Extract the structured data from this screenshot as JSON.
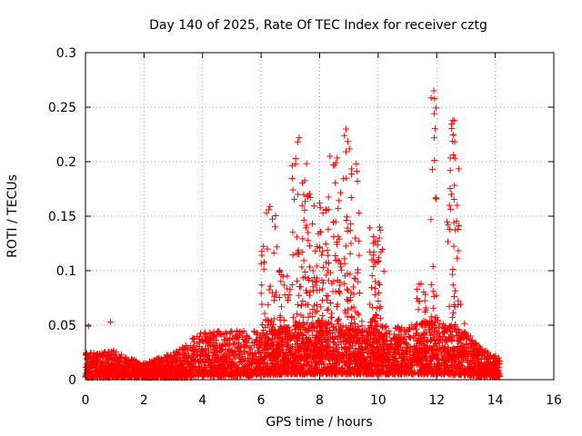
{
  "chart_data": {
    "type": "scatter",
    "title": "Day 140 of 2025, Rate Of TEC Index for receiver cztg",
    "xlabel": "GPS time / hours",
    "ylabel": "ROTI / TECUs",
    "xlim": [
      0,
      16
    ],
    "ylim": [
      0,
      0.3
    ],
    "xticks": [
      0,
      2,
      4,
      6,
      8,
      10,
      12,
      14,
      16
    ],
    "yticks": [
      0,
      0.05,
      0.1,
      0.15,
      0.2,
      0.25,
      0.3
    ],
    "xtick_labels": [
      "0",
      "2",
      "4",
      "6",
      "8",
      "10",
      "12",
      "14",
      "16"
    ],
    "ytick_labels": [
      "0",
      "0.05",
      "0.1",
      "0.15",
      "0.2",
      "0.25",
      "0.3"
    ],
    "grid": true,
    "marker": "+",
    "color": "#ff0000",
    "notable_points": [
      {
        "x": 0.1,
        "y": 0.049
      },
      {
        "x": 0.85,
        "y": 0.053
      },
      {
        "x": 6.3,
        "y": 0.159
      },
      {
        "x": 7.3,
        "y": 0.222
      },
      {
        "x": 7.6,
        "y": 0.135
      },
      {
        "x": 8.0,
        "y": 0.162
      },
      {
        "x": 8.35,
        "y": 0.205
      },
      {
        "x": 8.55,
        "y": 0.199
      },
      {
        "x": 8.9,
        "y": 0.23
      },
      {
        "x": 9.25,
        "y": 0.198
      },
      {
        "x": 9.85,
        "y": 0.117
      },
      {
        "x": 10.05,
        "y": 0.14
      },
      {
        "x": 11.9,
        "y": 0.265
      },
      {
        "x": 11.85,
        "y": 0.193
      },
      {
        "x": 12.55,
        "y": 0.238
      },
      {
        "x": 12.7,
        "y": 0.16
      },
      {
        "x": 12.5,
        "y": 0.17
      }
    ],
    "bursts": [
      {
        "x_start": 6.0,
        "x_end": 6.55,
        "y_max": 0.16,
        "n": 70
      },
      {
        "x_start": 6.6,
        "x_end": 7.0,
        "y_max": 0.105,
        "n": 50
      },
      {
        "x_start": 7.05,
        "x_end": 7.7,
        "y_max": 0.22,
        "n": 130
      },
      {
        "x_start": 7.75,
        "x_end": 8.15,
        "y_max": 0.165,
        "n": 90
      },
      {
        "x_start": 8.2,
        "x_end": 8.75,
        "y_max": 0.205,
        "n": 100
      },
      {
        "x_start": 8.8,
        "x_end": 9.1,
        "y_max": 0.23,
        "n": 60
      },
      {
        "x_start": 9.15,
        "x_end": 9.45,
        "y_max": 0.2,
        "n": 40
      },
      {
        "x_start": 9.7,
        "x_end": 10.2,
        "y_max": 0.14,
        "n": 90
      },
      {
        "x_start": 11.3,
        "x_end": 11.65,
        "y_max": 0.09,
        "n": 40
      },
      {
        "x_start": 11.8,
        "x_end": 12.0,
        "y_max": 0.265,
        "n": 40
      },
      {
        "x_start": 12.35,
        "x_end": 12.75,
        "y_max": 0.24,
        "n": 70
      },
      {
        "x_start": 12.8,
        "x_end": 13.0,
        "y_max": 0.07,
        "n": 30
      }
    ],
    "background_envelope": [
      {
        "x": 0.0,
        "y_low": 0.002,
        "y_high": 0.025
      },
      {
        "x": 0.5,
        "y_low": 0.002,
        "y_high": 0.025
      },
      {
        "x": 1.0,
        "y_low": 0.002,
        "y_high": 0.027
      },
      {
        "x": 1.5,
        "y_low": 0.002,
        "y_high": 0.02
      },
      {
        "x": 2.0,
        "y_low": 0.002,
        "y_high": 0.015
      },
      {
        "x": 2.5,
        "y_low": 0.002,
        "y_high": 0.02
      },
      {
        "x": 3.0,
        "y_low": 0.002,
        "y_high": 0.025
      },
      {
        "x": 3.5,
        "y_low": 0.002,
        "y_high": 0.035
      },
      {
        "x": 4.0,
        "y_low": 0.003,
        "y_high": 0.045
      },
      {
        "x": 5.0,
        "y_low": 0.003,
        "y_high": 0.045
      },
      {
        "x": 6.0,
        "y_low": 0.004,
        "y_high": 0.045
      },
      {
        "x": 7.0,
        "y_low": 0.005,
        "y_high": 0.05
      },
      {
        "x": 8.0,
        "y_low": 0.005,
        "y_high": 0.055
      },
      {
        "x": 9.0,
        "y_low": 0.005,
        "y_high": 0.05
      },
      {
        "x": 10.0,
        "y_low": 0.005,
        "y_high": 0.05
      },
      {
        "x": 11.0,
        "y_low": 0.005,
        "y_high": 0.05
      },
      {
        "x": 12.0,
        "y_low": 0.005,
        "y_high": 0.055
      },
      {
        "x": 13.0,
        "y_low": 0.004,
        "y_high": 0.045
      },
      {
        "x": 13.5,
        "y_low": 0.003,
        "y_high": 0.03
      },
      {
        "x": 14.15,
        "y_low": 0.003,
        "y_high": 0.02
      }
    ],
    "data_x_range": [
      0,
      14.15
    ]
  }
}
